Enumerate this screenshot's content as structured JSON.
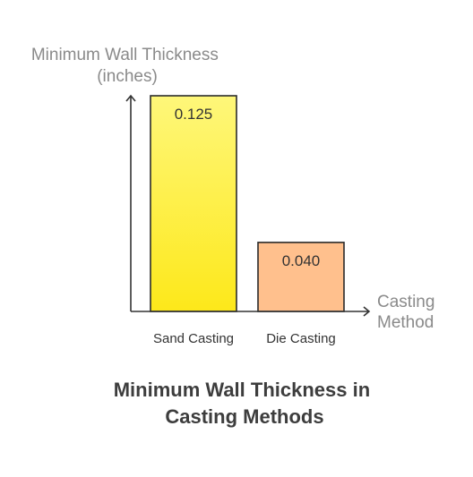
{
  "chart_data": {
    "type": "bar",
    "title": "Minimum Wall Thickness in Casting Methods",
    "title_lines": [
      "Minimum Wall Thickness in",
      "Casting Methods"
    ],
    "ylabel": "Minimum Wall Thickness (inches)",
    "ylabel_lines": [
      "Minimum Wall Thickness",
      "(inches)"
    ],
    "xlabel": "Casting Method",
    "xlabel_lines": [
      "Casting",
      "Method"
    ],
    "categories": [
      "Sand Casting",
      "Die Casting"
    ],
    "values": [
      0.125,
      0.04
    ],
    "value_labels": [
      "0.125",
      "0.040"
    ],
    "ylim": [
      0,
      0.125
    ],
    "grid": false,
    "legend": "none"
  },
  "colors": {
    "sand_casting_top": "#fef77a",
    "sand_casting_bottom": "#fde81a",
    "die_casting": "#ffc08d",
    "bar_stroke": "#2b2b2b",
    "axis": "#333333"
  }
}
